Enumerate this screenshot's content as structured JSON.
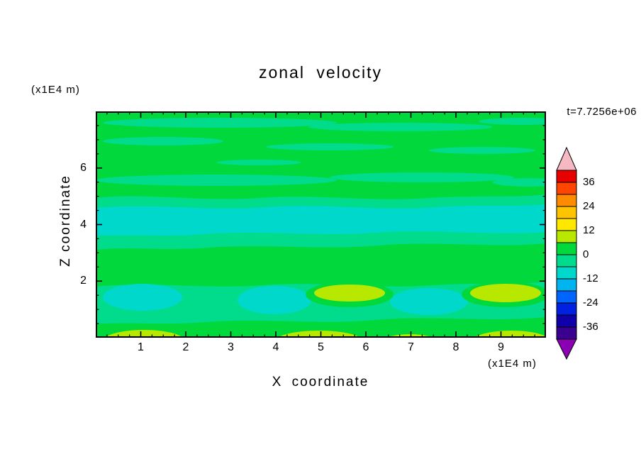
{
  "title": "zonal velocity",
  "labels": {
    "xlabel": "X coordinate",
    "ylabel": "Z coordinate",
    "y_axis_units": "(x1E4 m)",
    "x_axis_units": "(x1E4 m)",
    "time": "t=7.7256e+06"
  },
  "colors": {
    "background": "#ffffff",
    "axis": "#000000",
    "text": "#000000",
    "green": "#00d83c",
    "spring_green": "#00dc8c",
    "turquoise": "#00d8cc",
    "yellow_green": "#b8e800",
    "yellow": "#ffe800"
  },
  "colorbar": {
    "over_color": "#f6b8c2",
    "under_color": "#8c00b4",
    "tick_labels": [
      "36",
      "24",
      "12",
      "0",
      "-12",
      "-24",
      "-36"
    ],
    "segments": [
      {
        "color": "#e60000",
        "min": 36,
        "max": 42
      },
      {
        "color": "#ff4600",
        "min": 30,
        "max": 36
      },
      {
        "color": "#ff8c00",
        "min": 24,
        "max": 30
      },
      {
        "color": "#ffc300",
        "min": 18,
        "max": 24
      },
      {
        "color": "#ffe800",
        "min": 12,
        "max": 18
      },
      {
        "color": "#b8e800",
        "min": 6,
        "max": 12
      },
      {
        "color": "#00d83c",
        "min": 0,
        "max": 6
      },
      {
        "color": "#00dc8c",
        "min": -6,
        "max": 0
      },
      {
        "color": "#00d8cc",
        "min": -12,
        "max": -6
      },
      {
        "color": "#00b4f0",
        "min": -18,
        "max": -12
      },
      {
        "color": "#0064ff",
        "min": -24,
        "max": -18
      },
      {
        "color": "#0022e0",
        "min": -30,
        "max": -24
      },
      {
        "color": "#1000aa",
        "min": -36,
        "max": -30
      },
      {
        "color": "#3a0090",
        "min": -42,
        "max": -36
      }
    ]
  },
  "chart_data": {
    "type": "heatmap",
    "subtype": "filled-contour",
    "title": "zonal velocity",
    "xlabel": "X coordinate",
    "ylabel": "Z coordinate",
    "axis_units": "x1E4 m",
    "time_annotation": "t=7.7256e+06",
    "x_ticks": [
      1,
      2,
      3,
      4,
      5,
      6,
      7,
      8,
      9
    ],
    "y_ticks": [
      2,
      4,
      6
    ],
    "xlim": [
      0,
      10
    ],
    "ylim": [
      0,
      8
    ],
    "grid": false,
    "legend_position": "right-colorbar",
    "contour_interval": 6,
    "colorbar_tick_labels": [
      36,
      24,
      12,
      0,
      -12,
      -24,
      -36
    ],
    "colorbar_range": [
      -42,
      42
    ],
    "features": [
      {
        "level_range": "0 to 6",
        "color_name": "green",
        "where": "background over most of the domain"
      },
      {
        "level_range": "-6 to 0",
        "color_name": "spring green",
        "where": "thin horizontal streaks near z=6.5-7.5; band near z=4.8-5.6; broad band z=0.9-2.4"
      },
      {
        "level_range": "-12 to -6",
        "color_name": "turquoise",
        "where": "full-width band near z=3.6-4.7; pockets near (x=1.0,z=1.4), (x=4.0,z=1.3), (x=7.4,z=1.3)"
      },
      {
        "level_range": "6 to 12",
        "color_name": "yellow-green",
        "where": "pockets near (x=5.6,z=1.5) and (x=9.1,z=1.5); lobes on the bottom edge near x=1.1, 5.0, 7.0, 9.2"
      },
      {
        "level_range": "12 to 18",
        "color_name": "yellow",
        "where": "small spots touching the bottom edge near x=1.1, 5.0, 7.0, 9.2"
      }
    ]
  }
}
